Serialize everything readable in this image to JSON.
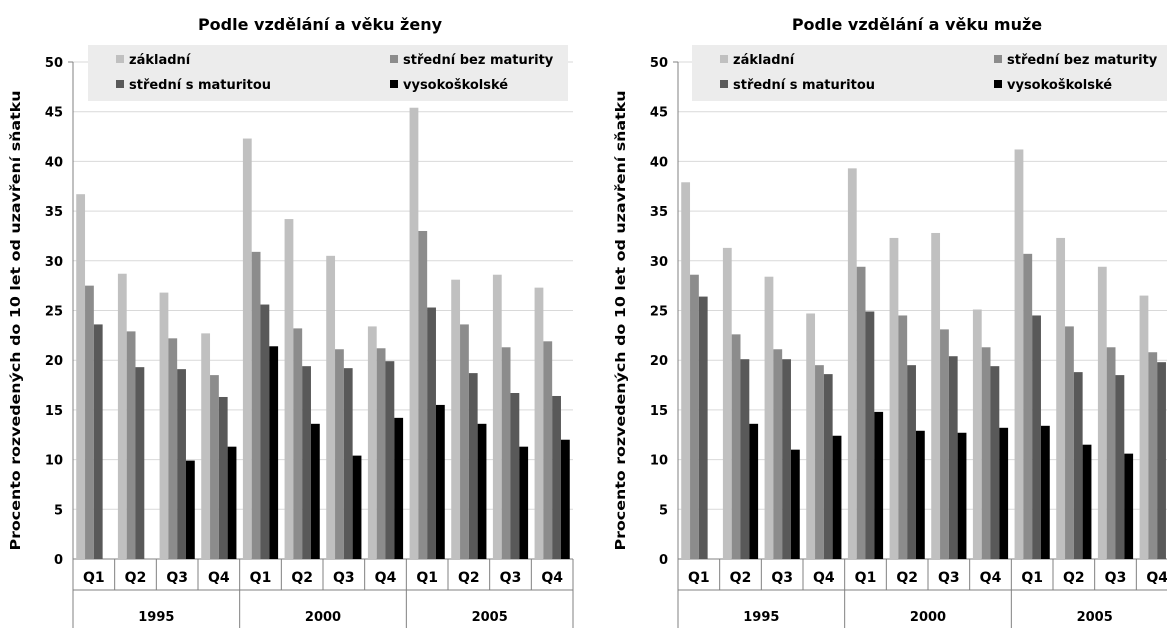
{
  "chart_data": [
    {
      "type": "bar",
      "title": "Podle vzdělání a věku ženy",
      "xlabel": "",
      "ylabel": "Procento rozvedených do 10 let od uzavření sňatku",
      "ylim": [
        0,
        50
      ],
      "yticks": [
        0,
        5,
        10,
        15,
        20,
        25,
        30,
        35,
        40,
        45,
        50
      ],
      "grid": true,
      "legend_placement": "top",
      "categories": [
        "Q1",
        "Q2",
        "Q3",
        "Q4",
        "Q1",
        "Q2",
        "Q3",
        "Q4",
        "Q1",
        "Q2",
        "Q3",
        "Q4"
      ],
      "groups": [
        "1995",
        "2000",
        "2005"
      ],
      "series": [
        {
          "name": "základní",
          "color": "#c0c0c0",
          "values": [
            36.7,
            28.7,
            26.8,
            22.7,
            42.3,
            34.2,
            30.5,
            23.4,
            45.4,
            28.1,
            28.6,
            27.3
          ]
        },
        {
          "name": "střední bez maturity",
          "color": "#8c8c8c",
          "values": [
            27.5,
            22.9,
            22.2,
            18.5,
            30.9,
            23.2,
            21.1,
            21.2,
            33.0,
            23.6,
            21.3,
            21.9
          ]
        },
        {
          "name": "střední s maturitou",
          "color": "#595959",
          "values": [
            23.6,
            19.3,
            19.1,
            16.3,
            25.6,
            19.4,
            19.2,
            19.9,
            25.3,
            18.7,
            16.7,
            16.4
          ]
        },
        {
          "name": "vysokoškolské",
          "color": "#000000",
          "values": [
            null,
            null,
            9.9,
            11.3,
            21.4,
            13.6,
            10.4,
            14.2,
            15.5,
            13.6,
            11.3,
            12.0
          ]
        }
      ]
    },
    {
      "type": "bar",
      "title": "Podle vzdělání a věku muže",
      "xlabel": "",
      "ylabel": "Procento rozvedených do 10 let od uzavření sňatku",
      "ylim": [
        0,
        50
      ],
      "yticks": [
        0,
        5,
        10,
        15,
        20,
        25,
        30,
        35,
        40,
        45,
        50
      ],
      "grid": true,
      "legend_placement": "top",
      "categories": [
        "Q1",
        "Q2",
        "Q3",
        "Q4",
        "Q1",
        "Q2",
        "Q3",
        "Q4",
        "Q1",
        "Q2",
        "Q3",
        "Q4"
      ],
      "groups": [
        "1995",
        "2000",
        "2005"
      ],
      "series": [
        {
          "name": "základní",
          "color": "#c0c0c0",
          "values": [
            37.9,
            31.3,
            28.4,
            24.7,
            39.3,
            32.3,
            32.8,
            25.1,
            41.2,
            32.3,
            29.4,
            26.5
          ]
        },
        {
          "name": "střední bez maturity",
          "color": "#8c8c8c",
          "values": [
            28.6,
            22.6,
            21.1,
            19.5,
            29.4,
            24.5,
            23.1,
            21.3,
            30.7,
            23.4,
            21.3,
            20.8
          ]
        },
        {
          "name": "střední s maturitou",
          "color": "#595959",
          "values": [
            26.4,
            20.1,
            20.1,
            18.6,
            24.9,
            19.5,
            20.4,
            19.4,
            24.5,
            18.8,
            18.5,
            19.8
          ]
        },
        {
          "name": "vysokoškolské",
          "color": "#000000",
          "values": [
            null,
            13.6,
            11.0,
            12.4,
            14.8,
            12.9,
            12.7,
            13.2,
            13.4,
            11.5,
            10.6,
            null
          ]
        }
      ]
    }
  ]
}
